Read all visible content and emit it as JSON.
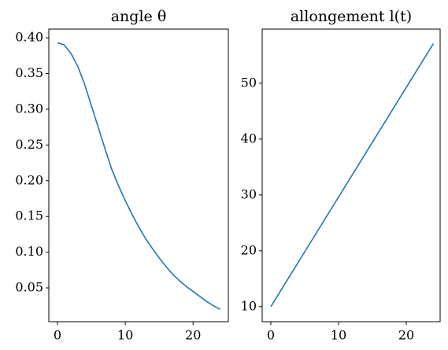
{
  "chart_data": [
    {
      "type": "line",
      "title": "angle θ",
      "x": [
        0,
        1,
        2,
        3,
        4,
        5,
        6,
        7,
        8,
        9,
        10,
        11,
        12,
        13,
        14,
        15,
        16,
        17,
        18,
        19,
        20,
        21,
        22,
        23,
        24
      ],
      "series": [
        {
          "color": "#1f77b4",
          "values": [
            0.393,
            0.39,
            0.378,
            0.36,
            0.335,
            0.305,
            0.275,
            0.245,
            0.216,
            0.193,
            0.172,
            0.153,
            0.135,
            0.119,
            0.105,
            0.092,
            0.08,
            0.069,
            0.06,
            0.052,
            0.045,
            0.038,
            0.031,
            0.025,
            0.02
          ]
        }
      ],
      "xlim": [
        -1.28,
        25.2
      ],
      "xticks": [
        0,
        10,
        20
      ],
      "ylim": [
        0.0027,
        0.4122
      ],
      "yticks": [
        0.05,
        {
          "value": 0.1,
          "label": "0.10"
        },
        0.15,
        {
          "value": 0.2,
          "label": "0.20"
        },
        0.25,
        {
          "value": 0.3,
          "label": "0.30"
        },
        0.35,
        {
          "value": 0.4,
          "label": "0.40"
        }
      ]
    },
    {
      "type": "line",
      "title": "allongement l(t)",
      "x": [
        0,
        4,
        8,
        12,
        16,
        20,
        24
      ],
      "series": [
        {
          "color": "#1f77b4",
          "values": [
            10,
            17.85,
            25.7,
            33.55,
            41.4,
            49.25,
            57.1
          ]
        }
      ],
      "xlim": [
        -1.28,
        25.0
      ],
      "xticks": [
        0,
        10,
        20
      ],
      "ylim": [
        7.3,
        59.7
      ],
      "yticks": [
        10,
        20,
        30,
        40,
        50
      ]
    }
  ]
}
